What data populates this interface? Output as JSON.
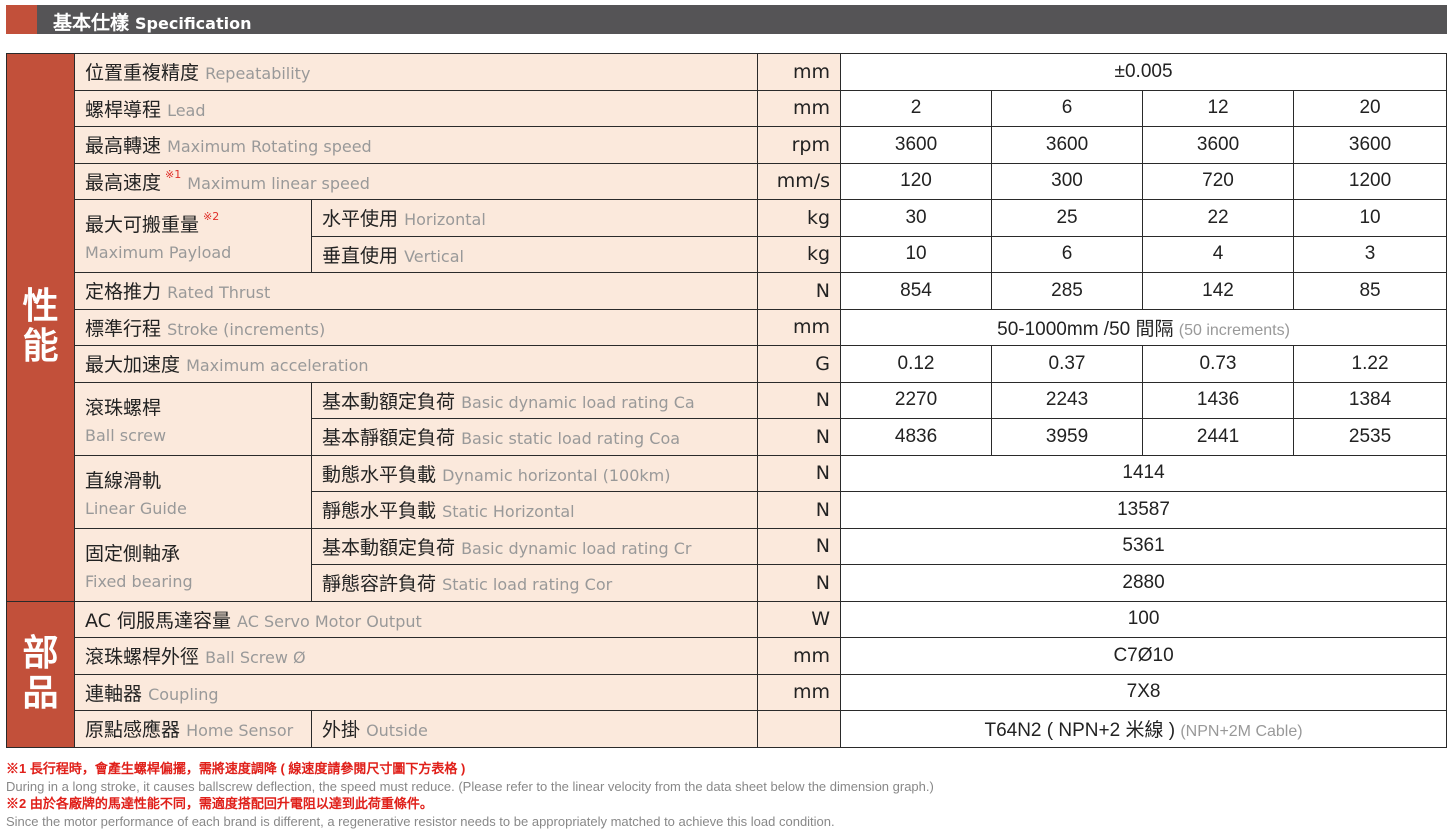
{
  "header": {
    "title_cn": "基本仕樣",
    "title_en": "Specification"
  },
  "colors": {
    "accent": "#c2503a",
    "label_bg": "#fbe9dc",
    "header_bg": "#555456",
    "note_red": "#e0201a"
  },
  "sections": [
    {
      "category": "性能",
      "rows": [
        {
          "cn": "位置重複精度",
          "en": "Repeatability",
          "unit": "mm",
          "values": [
            "±0.005"
          ]
        },
        {
          "cn": "螺桿導程",
          "en": "Lead",
          "unit": "mm",
          "values": [
            "2",
            "6",
            "12",
            "20"
          ]
        },
        {
          "cn": "最高轉速",
          "en": "Maximum Rotating speed",
          "unit": "rpm",
          "values": [
            "3600",
            "3600",
            "3600",
            "3600"
          ]
        },
        {
          "cn": "最高速度",
          "en": "Maximum linear speed",
          "sup": "※1",
          "unit": "mm/s",
          "values": [
            "120",
            "300",
            "720",
            "1200"
          ]
        },
        {
          "cn": "最大可搬重量",
          "en": "Maximum Payload",
          "sup": "※2",
          "subs": [
            {
              "cn": "水平使用",
              "en": "Horizontal",
              "unit": "kg",
              "values": [
                "30",
                "25",
                "22",
                "10"
              ]
            },
            {
              "cn": "垂直使用",
              "en": "Vertical",
              "unit": "kg",
              "values": [
                "10",
                "6",
                "4",
                "3"
              ]
            }
          ]
        },
        {
          "cn": "定格推力",
          "en": "Rated Thrust",
          "unit": "N",
          "values": [
            "854",
            "285",
            "142",
            "85"
          ]
        },
        {
          "cn": "標準行程",
          "en": "Stroke (increments)",
          "unit": "mm",
          "values": [
            "50-1000mm /50 間隔"
          ],
          "value_note": "(50 increments)"
        },
        {
          "cn": "最大加速度",
          "en": "Maximum acceleration",
          "unit": "G",
          "values": [
            "0.12",
            "0.37",
            "0.73",
            "1.22"
          ]
        },
        {
          "cn": "滾珠螺桿",
          "en": "Ball screw",
          "subs": [
            {
              "cn": "基本動額定負荷",
              "en": "Basic dynamic load rating Ca",
              "unit": "N",
              "values": [
                "2270",
                "2243",
                "1436",
                "1384"
              ]
            },
            {
              "cn": "基本靜額定負荷",
              "en": "Basic static load rating Coa",
              "unit": "N",
              "values": [
                "4836",
                "3959",
                "2441",
                "2535"
              ]
            }
          ]
        },
        {
          "cn": "直線滑軌",
          "en": "Linear Guide",
          "subs": [
            {
              "cn": "動態水平負載",
              "en": "Dynamic horizontal (100km)",
              "unit": "N",
              "values": [
                "1414"
              ]
            },
            {
              "cn": "靜態水平負載",
              "en": "Static Horizontal",
              "unit": "N",
              "values": [
                "13587"
              ]
            }
          ]
        },
        {
          "cn": "固定側軸承",
          "en": "Fixed bearing",
          "subs": [
            {
              "cn": "基本動額定負荷",
              "en": "Basic dynamic load rating Cr",
              "unit": "N",
              "values": [
                "5361"
              ]
            },
            {
              "cn": "靜態容許負荷",
              "en": "Static load rating Cor",
              "unit": "N",
              "values": [
                "2880"
              ]
            }
          ]
        }
      ]
    },
    {
      "category": "部品",
      "rows": [
        {
          "cn": "AC 伺服馬達容量",
          "en": "AC Servo Motor Output",
          "unit": "W",
          "values": [
            "100"
          ]
        },
        {
          "cn": "滾珠螺桿外徑",
          "en": "Ball Screw Ø",
          "unit": "mm",
          "values": [
            "C7Ø10"
          ]
        },
        {
          "cn": "連軸器",
          "en": "Coupling",
          "unit": "mm",
          "values": [
            "7X8"
          ]
        },
        {
          "cn": "原點感應器",
          "en": "Home Sensor",
          "inline_sub": {
            "cn": "外掛",
            "en": "Outside"
          },
          "unit": "",
          "values": [
            "T64N2 ( NPN+2 米線 )"
          ],
          "value_note": "(NPN+2M Cable)"
        }
      ]
    }
  ],
  "notes": [
    {
      "cn": "※1 長行程時，會產生螺桿偏擺，需將速度調降 ( 線速度請參閱尺寸圖下方表格 )",
      "en": "During in a long stroke, it causes ballscrew deflection, the speed must reduce. (Please refer to the linear velocity from the data sheet below the dimension graph.)"
    },
    {
      "cn": "※2 由於各廠牌的馬達性能不同，需適度搭配回升電阻以達到此荷重條件。",
      "en": "Since the motor performance of each brand is different, a regenerative resistor needs to be appropriately matched to achieve this load condition."
    }
  ]
}
